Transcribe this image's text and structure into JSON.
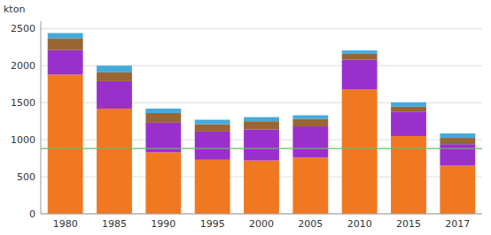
{
  "chart_data": {
    "type": "bar",
    "stacked": true,
    "y_label": "kton",
    "categories": [
      "1980",
      "1985",
      "1990",
      "1995",
      "2000",
      "2005",
      "2010",
      "2015",
      "2017"
    ],
    "series": [
      {
        "color": "#f07820",
        "values": [
          1880,
          1420,
          830,
          730,
          720,
          760,
          1680,
          1050,
          650
        ]
      },
      {
        "color": "#9930cc",
        "values": [
          330,
          370,
          400,
          380,
          420,
          420,
          400,
          330,
          290
        ]
      },
      {
        "color": "#996633",
        "values": [
          160,
          120,
          130,
          100,
          110,
          100,
          80,
          65,
          85
        ]
      },
      {
        "color": "#44aadd",
        "values": [
          70,
          90,
          60,
          60,
          55,
          50,
          45,
          60,
          60
        ]
      }
    ],
    "reference_lines": [
      {
        "value": 880,
        "color": "#66bb66"
      }
    ],
    "ylim": [
      0,
      2600
    ],
    "yticks": [
      0,
      500,
      1000,
      1500,
      2000,
      2500
    ],
    "grid": true
  }
}
